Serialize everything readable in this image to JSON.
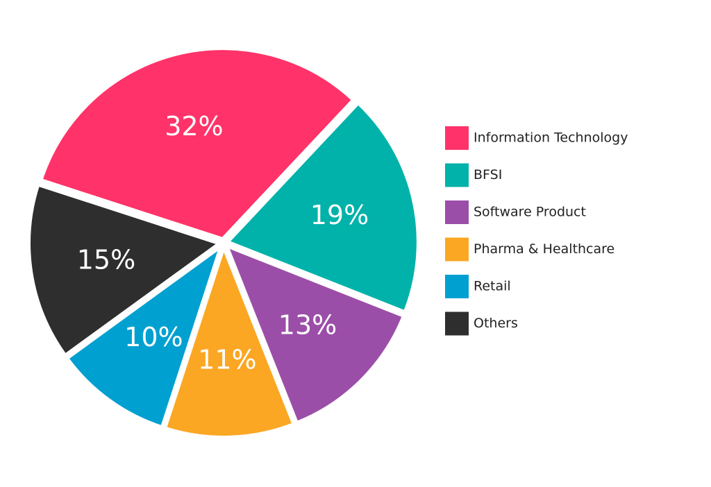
{
  "chart_data": {
    "type": "pie",
    "categories": [
      "Information Technology",
      "BFSI",
      "Software Product",
      "Pharma & Healthcare",
      "Retail",
      "Others"
    ],
    "values": [
      32,
      19,
      13,
      11,
      10,
      15
    ],
    "value_labels": [
      "32%",
      "19%",
      "13%",
      "11%",
      "10%",
      "15%"
    ],
    "colors": [
      "#ff3369",
      "#00b2a9",
      "#9b4ea8",
      "#fba724",
      "#00a0d1",
      "#2e2e2e"
    ],
    "legend": "right"
  }
}
